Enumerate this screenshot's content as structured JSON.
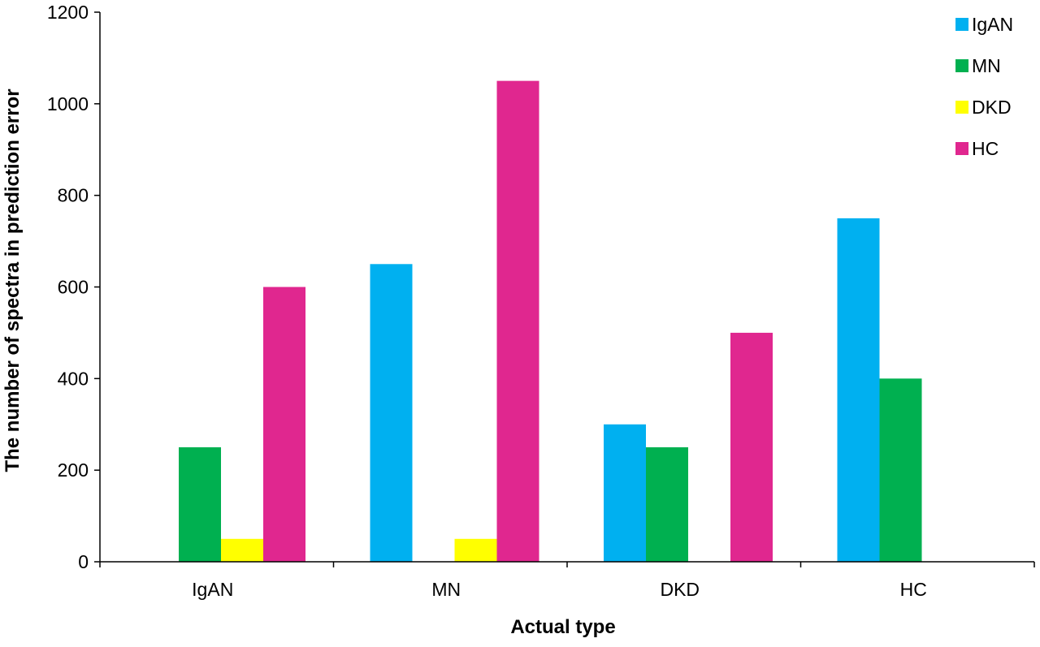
{
  "chart_data": {
    "type": "bar",
    "title": "",
    "xlabel": "Actual type",
    "ylabel": "The number of spectra in prediction error",
    "categories": [
      "IgAN",
      "MN",
      "DKD",
      "HC"
    ],
    "ylim": [
      0,
      1200
    ],
    "yticks": [
      0,
      200,
      400,
      600,
      800,
      1000,
      1200
    ],
    "grid": false,
    "legend_position": "top-right",
    "series": [
      {
        "name": "IgAN",
        "color": "#00B0F0",
        "values": [
          0,
          650,
          300,
          750
        ]
      },
      {
        "name": "MN",
        "color": "#00B050",
        "values": [
          250,
          0,
          250,
          400
        ]
      },
      {
        "name": "DKD",
        "color": "#FFFF00",
        "values": [
          50,
          50,
          0,
          0
        ]
      },
      {
        "name": "HC",
        "color": "#E0278F",
        "values": [
          600,
          1050,
          500,
          0
        ]
      }
    ]
  }
}
